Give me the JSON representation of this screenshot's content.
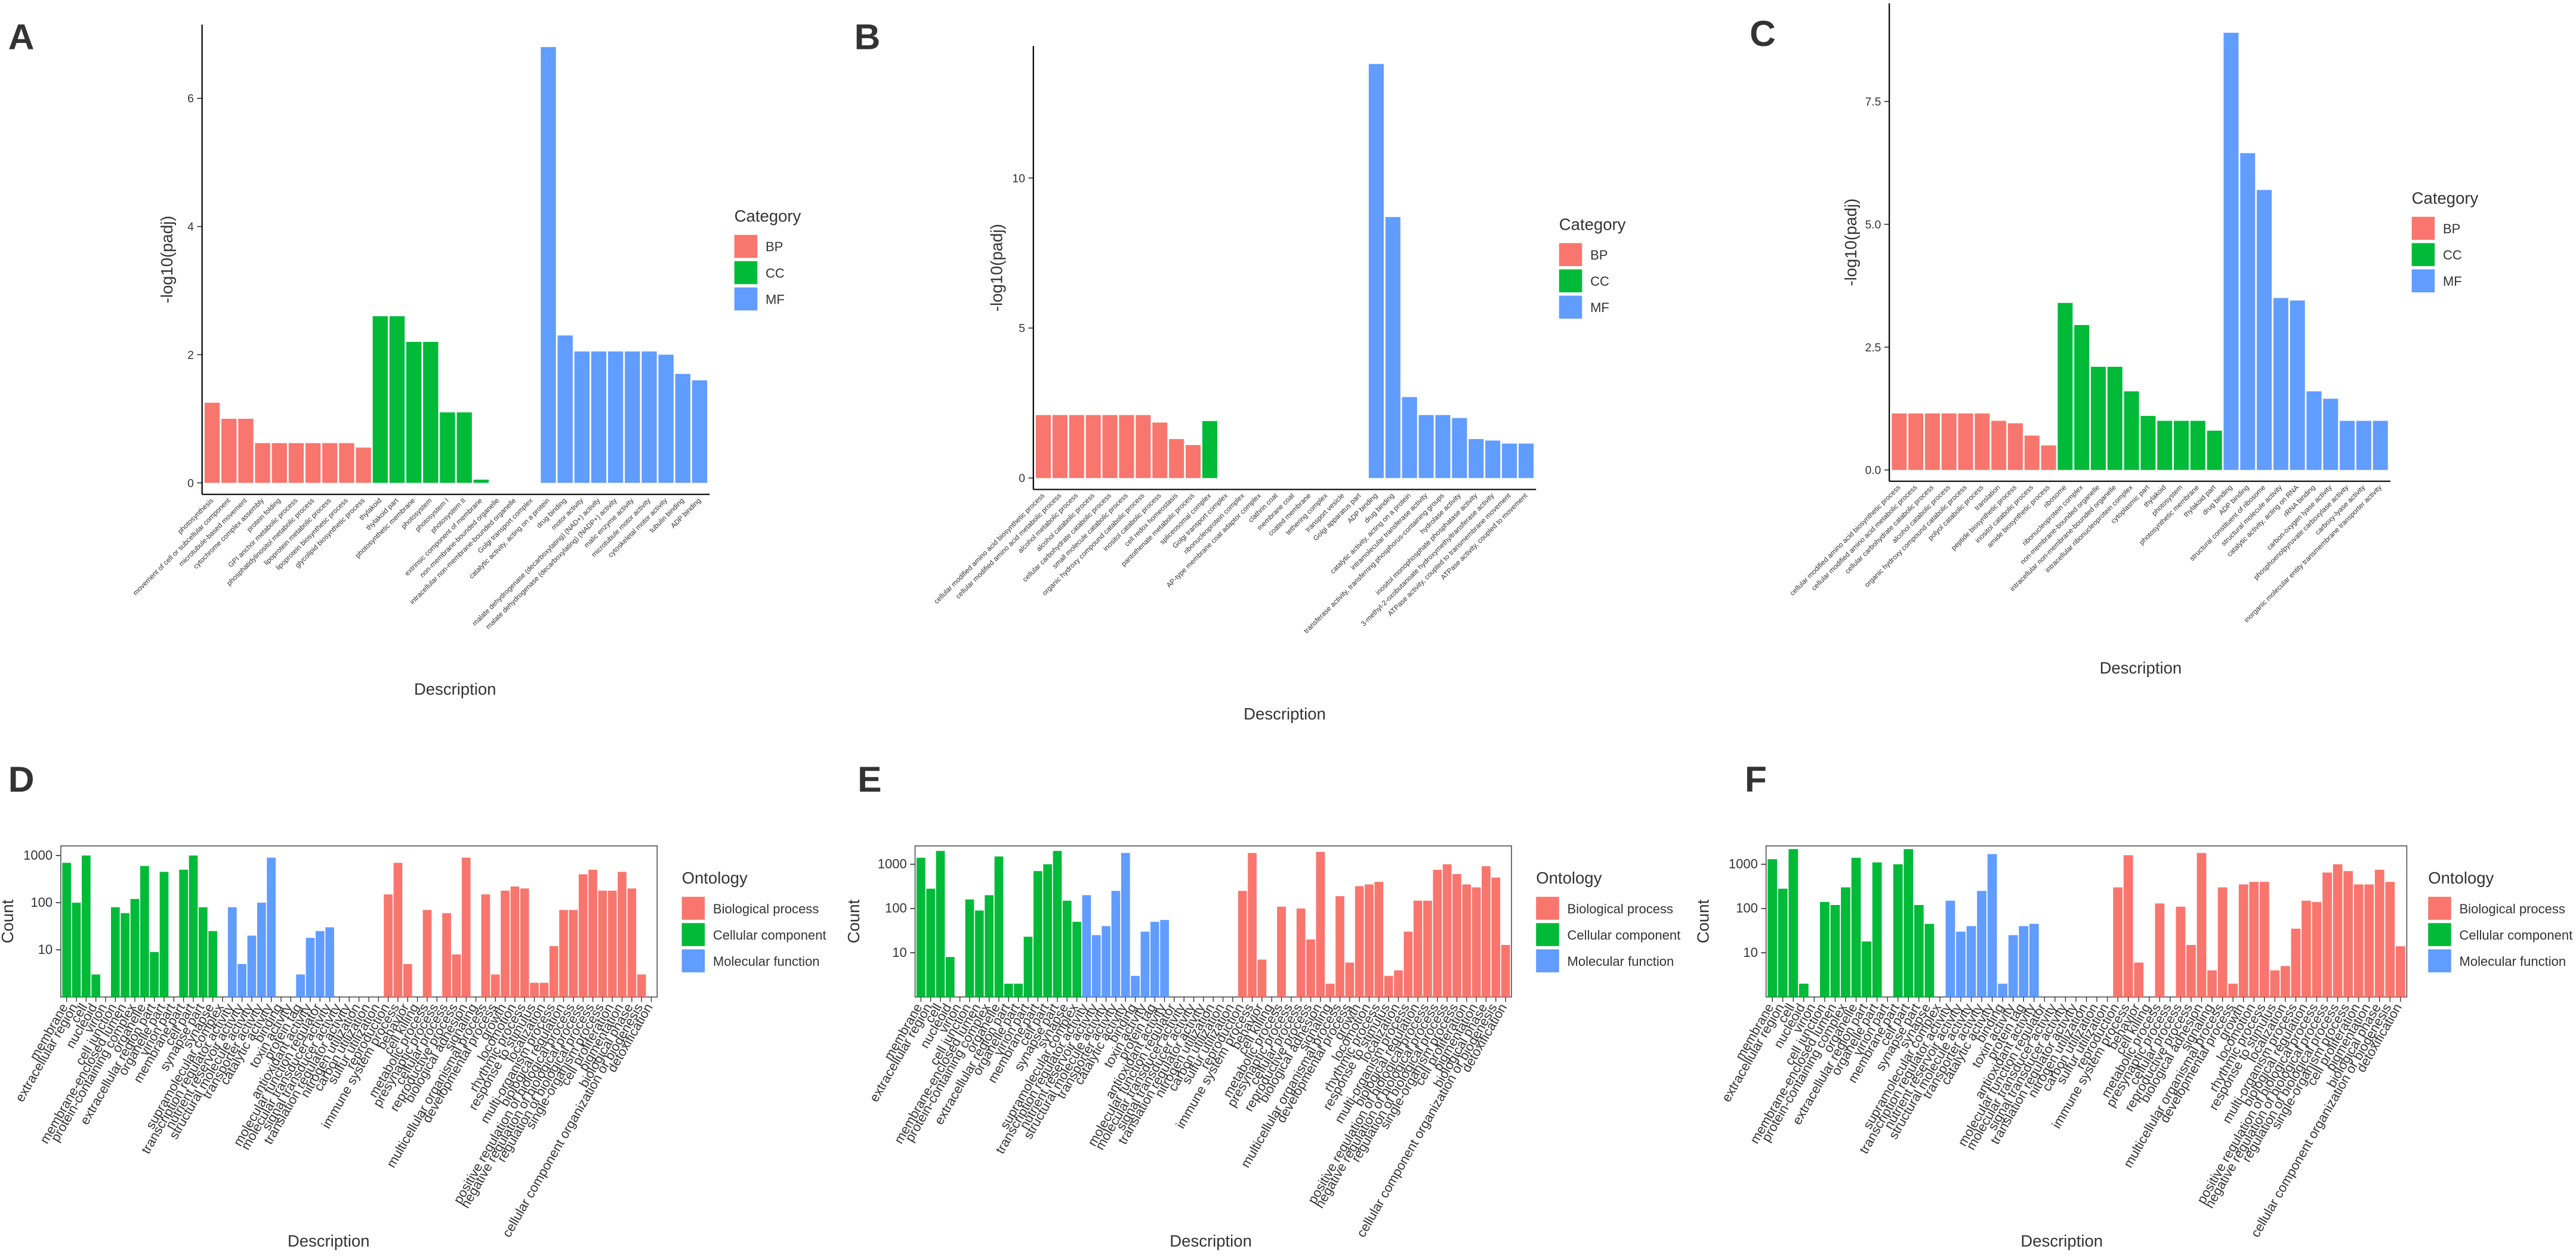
{
  "chart_data": [
    {
      "type": "bar",
      "tag": "A",
      "ylabel": "-log10(padj)",
      "xlabel": "Description",
      "legend_title": "Category",
      "log_scale": false,
      "ylim": [
        -0.18,
        7.15
      ],
      "yticks": [
        0,
        2,
        4,
        6
      ],
      "series": [
        {
          "name": "BP",
          "color": "#F8766D",
          "categories": [
            "photosynthesis",
            "movement of cell or subcellular component",
            "microtubule-based movement",
            "cytochrome complex assembly",
            "protein folding",
            "GPI anchor metabolic process",
            "phosphatidylinositol metabolic process",
            "lipoprotein metabolic process",
            "lipoprotein biosynthetic process",
            "glycolipid biosynthetic process"
          ],
          "values": [
            1.25,
            1.0,
            1.0,
            0.62,
            0.62,
            0.62,
            0.62,
            0.62,
            0.62,
            0.55
          ]
        },
        {
          "name": "CC",
          "color": "#00BA38",
          "categories": [
            "thylakoid",
            "thylakoid part",
            "photosynthetic membrane",
            "photosystem",
            "photosystem I",
            "photosystem II",
            "extrinsic component of membrane",
            "non-membrane-bounded organelle",
            "intracellular non-membrane-bounded organelle",
            "Golgi transport complex"
          ],
          "values": [
            2.6,
            2.6,
            2.2,
            2.2,
            1.1,
            1.1,
            0.05,
            0,
            0,
            0
          ]
        },
        {
          "name": "MF",
          "color": "#619CFF",
          "categories": [
            "catalytic activity, acting on a protein",
            "drug binding",
            "motor activity",
            "malate dehydrogenase (decarboxylating) (NAD+) activity",
            "malate dehydrogenase (decarboxylating) (NADP+) activity",
            "malic enzyme activity",
            "microtubule motor activity",
            "cytoskeletal motor activity",
            "tubulin binding",
            "ADP binding"
          ],
          "values": [
            6.8,
            2.3,
            2.05,
            2.05,
            2.05,
            2.05,
            2.05,
            2.0,
            1.7,
            1.6
          ]
        }
      ]
    },
    {
      "type": "bar",
      "tag": "B",
      "ylabel": "-log10(padj)",
      "xlabel": "Description",
      "legend_title": "Category",
      "log_scale": false,
      "ylim": [
        -0.38,
        14.4
      ],
      "yticks": [
        0,
        5,
        10
      ],
      "series": [
        {
          "name": "BP",
          "color": "#F8766D",
          "categories": [
            "cellular modified amino acid biosynthetic process",
            "cellular modified amino acid metabolic process",
            "alcohol metabolic process",
            "alcohol catabolic process",
            "cellular carbohydrate catabolic process",
            "small molecule catabolic process",
            "organic hydroxy compound catabolic process",
            "inositol catabolic process",
            "cell redox homeostasis",
            "pantothenate metabolic process"
          ],
          "values": [
            2.1,
            2.1,
            2.1,
            2.1,
            2.1,
            2.1,
            2.1,
            1.85,
            1.3,
            1.1
          ]
        },
        {
          "name": "CC",
          "color": "#00BA38",
          "categories": [
            "spliceosomal complex",
            "Golgi transport complex",
            "ribonucleoprotein complex",
            "AP-type membrane coat adaptor complex",
            "clathrin coat",
            "membrane coat",
            "coated membrane",
            "tethering complex",
            "transport vesicle",
            "Golgi apparatus part"
          ],
          "values": [
            1.9,
            0,
            0,
            0,
            0,
            0,
            0,
            0,
            0,
            0
          ]
        },
        {
          "name": "MF",
          "color": "#619CFF",
          "categories": [
            "ADP binding",
            "drug binding",
            "catalytic activity, acting on a protein",
            "intramolecular transferase activity",
            "transferase activity, transferring phosphorus-containing groups",
            "hydrolase activity",
            "inositol monophosphate phosphatase activity",
            "3-methyl-2-oxobutanoate hydroxymethyltransferase activity",
            "ATPase activity, coupled to transmembrane movement",
            "ATPase activity, coupled to movement"
          ],
          "values": [
            13.8,
            8.7,
            2.7,
            2.1,
            2.1,
            2.0,
            1.3,
            1.25,
            1.15,
            1.15
          ]
        }
      ]
    },
    {
      "type": "bar",
      "tag": "C",
      "ylabel": "-log10(padj)",
      "xlabel": "Description",
      "legend_title": "Category",
      "log_scale": false,
      "ylim": [
        -0.23,
        9.5
      ],
      "yticks": [
        {
          "value": 0,
          "label": "0.0"
        },
        2.5,
        {
          "value": 5,
          "label": "5.0"
        },
        7.5
      ],
      "series": [
        {
          "name": "BP",
          "color": "#F8766D",
          "categories": [
            "cellular modified amino acid biosynthetic process",
            "cellular modified amino acid metabolic process",
            "cellular carbohydrate catabolic process",
            "alcohol catabolic process",
            "organic hydroxy compound catabolic process",
            "polyol catabolic process",
            "translation",
            "peptide biosynthetic process",
            "inositol catabolic process",
            "amide biosynthetic process"
          ],
          "values": [
            1.15,
            1.15,
            1.15,
            1.15,
            1.15,
            1.15,
            1.0,
            0.95,
            0.7,
            0.5
          ]
        },
        {
          "name": "CC",
          "color": "#00BA38",
          "categories": [
            "ribosome",
            "ribonucleoprotein complex",
            "non-membrane-bounded organelle",
            "intracellular non-membrane-bounded organelle",
            "intracellular ribonucleoprotein complex",
            "cytoplasmic part",
            "thylakoid",
            "photosystem",
            "photosynthetic membrane",
            "thylakoid part"
          ],
          "values": [
            3.4,
            2.95,
            2.1,
            2.1,
            1.6,
            1.1,
            1.0,
            1.0,
            1.0,
            0.8
          ]
        },
        {
          "name": "MF",
          "color": "#619CFF",
          "categories": [
            "drug binding",
            "ADP binding",
            "structural constituent of ribosome",
            "structural molecule activity",
            "catalytic activity, acting on RNA",
            "rRNA binding",
            "carbon-oxygen lyase activity",
            "phosphoenolpyruvate carboxylase activity",
            "carboxy-lyase activity",
            "inorganic molecular entity transmembrane transporter activity"
          ],
          "values": [
            8.9,
            6.45,
            5.7,
            3.5,
            3.45,
            1.6,
            1.45,
            1.0,
            1.0,
            1.0
          ]
        }
      ]
    },
    {
      "type": "bar",
      "tag": "D",
      "ylabel": "Count",
      "xlabel": "Description",
      "legend_title": "Ontology",
      "log_scale": true,
      "ylim": [
        1,
        1600
      ],
      "yticks": [
        10,
        100,
        1000
      ],
      "series": [
        {
          "name": "Cellular component",
          "color": "#00BA38",
          "categories": [
            "membrane",
            "extracellular region",
            "cell",
            "nucleoid",
            "virion",
            "cell junction",
            "membrane-enclosed lumen",
            "protein-containing complex",
            "organelle",
            "extracellular region part",
            "organelle part",
            "virion part",
            "membrane part",
            "cell part",
            "synapse part",
            "synapse",
            "supramolecular complex"
          ],
          "values": [
            700,
            100,
            1000,
            3,
            0,
            80,
            60,
            120,
            600,
            9,
            450,
            0,
            500,
            1000,
            80,
            25,
            0
          ]
        },
        {
          "name": "Molecular function",
          "color": "#619CFF",
          "categories": [
            "transcription regulator activity",
            "nutrient reservoir activity",
            "structural molecule activity",
            "transporter activity",
            "catalytic activity",
            "binding",
            "toxin activity",
            "protein tag",
            "antioxidant activity",
            "molecular function regulator",
            "molecular transducer activity",
            "signal transducer activity",
            "translation regulator activity"
          ],
          "values": [
            80,
            5,
            20,
            100,
            900,
            0,
            0,
            3,
            18,
            25,
            30,
            0,
            0
          ]
        },
        {
          "name": "Biological process",
          "color": "#F8766D",
          "categories": [
            "nitrogen utilization",
            "carbon utilization",
            "sulfur utilization",
            "reproduction",
            "immune system process",
            "behavior",
            "cell killing",
            "metabolic process",
            "presynaptic process",
            "cellular process",
            "reproductive process",
            "biological adhesion",
            "signaling",
            "multicellular organismal process",
            "developmental process",
            "growth",
            "locomotion",
            "rhythmic process",
            "response to stimulus",
            "localization",
            "multi-organism process",
            "biological regulation",
            "positive regulation of biological process",
            "negative regulation of biological process",
            "regulation of biological process",
            "single-organism process",
            "cell proliferation",
            "pigmentation",
            "biological phase",
            "cellular component organization or biogenesis",
            "detoxification"
          ],
          "values": [
            0,
            0,
            0,
            150,
            700,
            5,
            0,
            70,
            0,
            60,
            8,
            900,
            0,
            150,
            3,
            180,
            220,
            200,
            2,
            2,
            12,
            70,
            70,
            400,
            500,
            180,
            180,
            450,
            200,
            3,
            0
          ]
        }
      ]
    },
    {
      "type": "bar",
      "tag": "E",
      "ylabel": "Count",
      "xlabel": "Description",
      "legend_title": "Ontology",
      "log_scale": true,
      "ylim": [
        1,
        2600
      ],
      "yticks": [
        10,
        100,
        1000
      ],
      "series": [
        {
          "name": "Cellular component",
          "color": "#00BA38",
          "categories": [
            "membrane",
            "extracellular region",
            "cell",
            "nucleoid",
            "virion",
            "cell junction",
            "membrane-enclosed lumen",
            "protein-containing complex",
            "organelle",
            "extracellular region part",
            "organelle part",
            "virion part",
            "membrane part",
            "cell part",
            "synapse part",
            "synapse",
            "supramolecular complex"
          ],
          "values": [
            1400,
            280,
            2000,
            8,
            0,
            160,
            90,
            200,
            1500,
            2,
            2,
            23,
            700,
            1000,
            2000,
            150,
            50
          ]
        },
        {
          "name": "Molecular function",
          "color": "#619CFF",
          "categories": [
            "transcription regulator activity",
            "nutrient reservoir activity",
            "structural molecule activity",
            "transporter activity",
            "catalytic activity",
            "binding",
            "toxin activity",
            "protein tag",
            "antioxidant activity",
            "molecular function regulator",
            "molecular transducer activity",
            "signal transducer activity",
            "translation regulator activity"
          ],
          "values": [
            200,
            25,
            40,
            250,
            1800,
            3,
            30,
            50,
            55,
            0,
            0,
            0,
            0
          ]
        },
        {
          "name": "Biological process",
          "color": "#F8766D",
          "categories": [
            "nitrogen utilization",
            "carbon utilization",
            "sulfur utilization",
            "reproduction",
            "immune system process",
            "behavior",
            "cell killing",
            "metabolic process",
            "presynaptic process",
            "cellular process",
            "reproductive process",
            "biological adhesion",
            "signaling",
            "multicellular organismal process",
            "developmental process",
            "growth",
            "locomotion",
            "rhythmic process",
            "response to stimulus",
            "localization",
            "multi-organism process",
            "biological regulation",
            "positive regulation of biological process",
            "negative regulation of biological process",
            "regulation of biological process",
            "single-organism process",
            "cell proliferation",
            "pigmentation",
            "biological phase",
            "cellular component organization or biogenesis",
            "detoxification"
          ],
          "values": [
            0,
            0,
            0,
            250,
            1800,
            7,
            0,
            110,
            0,
            100,
            20,
            1900,
            2,
            190,
            6,
            320,
            350,
            400,
            3,
            4,
            30,
            150,
            150,
            750,
            1000,
            600,
            350,
            300,
            900,
            500,
            15
          ]
        }
      ]
    },
    {
      "type": "bar",
      "tag": "F",
      "ylabel": "Count",
      "xlabel": "Description",
      "legend_title": "Ontology",
      "log_scale": true,
      "ylim": [
        1,
        2600
      ],
      "yticks": [
        10,
        100,
        1000
      ],
      "series": [
        {
          "name": "Cellular component",
          "color": "#00BA38",
          "categories": [
            "membrane",
            "extracellular region",
            "cell",
            "nucleoid",
            "virion",
            "cell junction",
            "membrane-enclosed lumen",
            "protein-containing complex",
            "organelle",
            "extracellular region part",
            "organelle part",
            "virion part",
            "membrane part",
            "cell part",
            "synapse part",
            "synapse",
            "supramolecular complex"
          ],
          "values": [
            1300,
            280,
            2200,
            2,
            0,
            140,
            120,
            300,
            1400,
            18,
            1100,
            0,
            1000,
            2200,
            120,
            45,
            0
          ]
        },
        {
          "name": "Molecular function",
          "color": "#619CFF",
          "categories": [
            "transcription regulator activity",
            "nutrient reservoir activity",
            "structural molecule activity",
            "transporter activity",
            "catalytic activity",
            "binding",
            "toxin activity",
            "protein tag",
            "antioxidant activity",
            "molecular function regulator",
            "molecular transducer activity",
            "signal transducer activity",
            "translation regulator activity"
          ],
          "values": [
            150,
            30,
            40,
            250,
            1700,
            2,
            25,
            40,
            45,
            0,
            0,
            0,
            0
          ]
        },
        {
          "name": "Biological process",
          "color": "#F8766D",
          "categories": [
            "nitrogen utilization",
            "carbon utilization",
            "sulfur utilization",
            "reproduction",
            "immune system process",
            "behavior",
            "cell killing",
            "metabolic process",
            "presynaptic process",
            "cellular process",
            "reproductive process",
            "biological adhesion",
            "signaling",
            "multicellular organismal process",
            "developmental process",
            "growth",
            "locomotion",
            "rhythmic process",
            "response to stimulus",
            "localization",
            "multi-organism process",
            "biological regulation",
            "positive regulation of biological process",
            "negative regulation of biological process",
            "regulation of biological process",
            "single-organism process",
            "cell proliferation",
            "pigmentation",
            "biological phase",
            "cellular component organization or biogenesis",
            "detoxification"
          ],
          "values": [
            0,
            0,
            0,
            300,
            1600,
            6,
            0,
            130,
            0,
            110,
            15,
            1800,
            4,
            300,
            2,
            350,
            400,
            400,
            4,
            5,
            35,
            150,
            140,
            650,
            1000,
            700,
            350,
            350,
            750,
            400,
            14
          ]
        }
      ]
    }
  ]
}
